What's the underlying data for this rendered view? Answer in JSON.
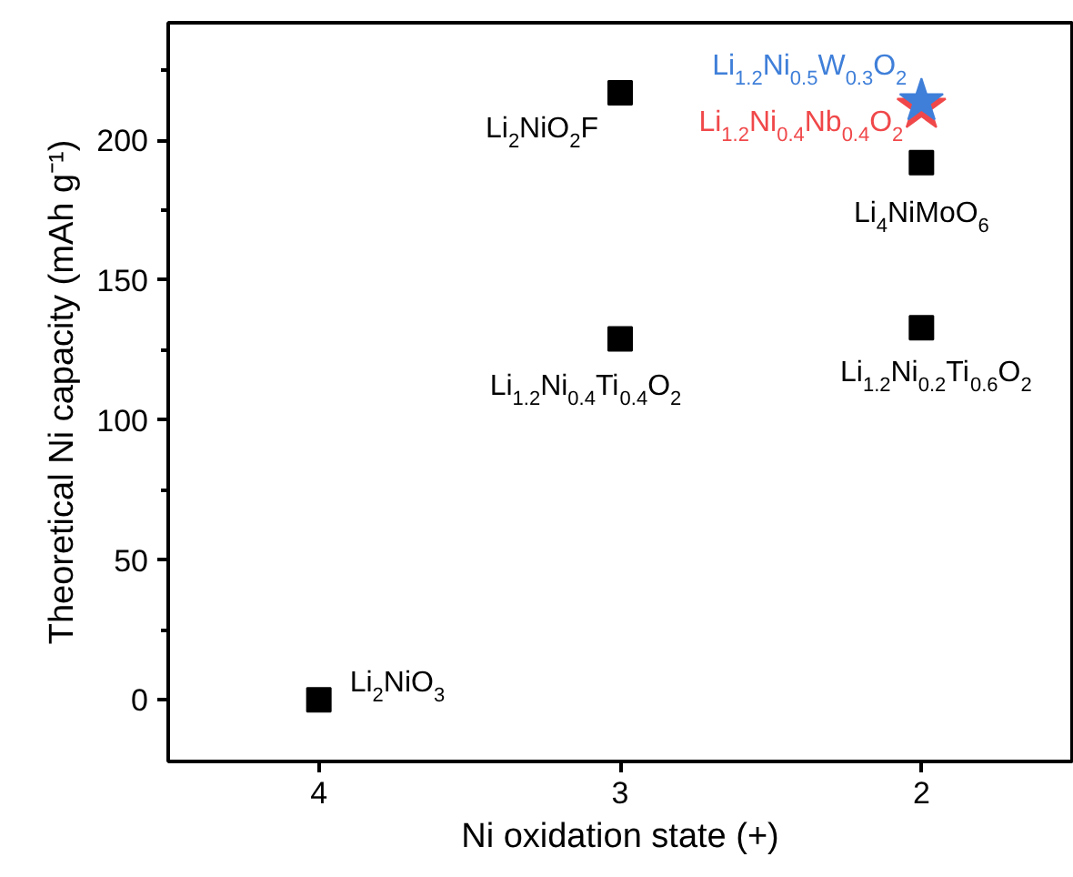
{
  "chart_data": {
    "type": "scatter",
    "xlabel": "Ni oxidation state (+)",
    "ylabel": "Theoretical Ni capacity (mAh g⁻¹)",
    "xlim": [
      4.5,
      1.5
    ],
    "xticks": [
      4,
      3,
      2
    ],
    "ylim": [
      -22,
      242
    ],
    "yticks": [
      0,
      50,
      100,
      150,
      200
    ],
    "grid": false,
    "series": [
      {
        "color": "#000000",
        "marker": "square",
        "x": [
          4,
          3,
          3,
          2,
          2
        ],
        "values": [
          0,
          217,
          129,
          192,
          133
        ]
      },
      {
        "name": "Li$_{1.2}$Ni$_{0.5}$W$_{0.3}$O$_{2}$",
        "color": "#3f7fd9",
        "marker": "star",
        "x": [
          2
        ],
        "values": [
          214
        ]
      },
      {
        "name": "Li$_{1.2}$Ni$_{0.4}$Nb$_{0.4}$O$_{2}$",
        "color": "#f0484a",
        "marker": "star",
        "x": [
          2
        ],
        "values": [
          212
        ]
      }
    ],
    "annotations": [
      {
        "text": "Li$_{2}$NiO$_{2}$F",
        "x": 3,
        "y": 217
      },
      {
        "text": "Li$_{1.2}$Ni$_{0.4}$Ti$_{0.4}$O$_{2}$",
        "x": 3,
        "y": 129
      },
      {
        "text": "Li$_{4}$NiMoO$_{6}$",
        "x": 2,
        "y": 192
      },
      {
        "text": "Li$_{1.2}$Ni$_{0.2}$Ti$_{0.6}$O$_{2}$",
        "x": 2,
        "y": 133
      },
      {
        "text": "Li$_{2}$NiO$_{3}$",
        "x": 4,
        "y": 0
      }
    ]
  }
}
